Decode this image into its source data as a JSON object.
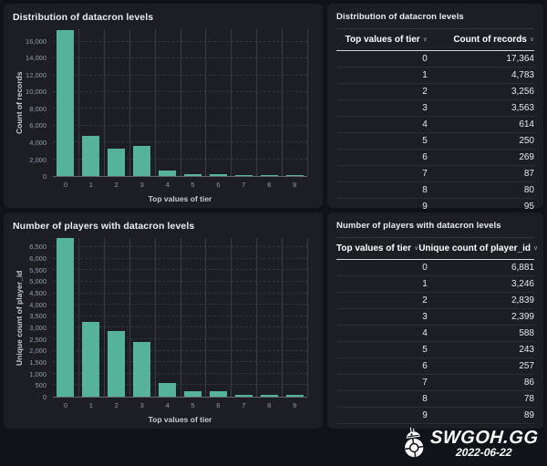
{
  "colors": {
    "page_background": "#121318",
    "panel_background": "#1d1e24",
    "bar_fill": "#54b399",
    "header_underline": "#ced3dc"
  },
  "panels": [
    {
      "type": "chart",
      "title": "Distribution of datacron levels"
    },
    {
      "type": "table",
      "title": "Distribution of datacron levels"
    },
    {
      "type": "chart",
      "title": "Number of players with datacron levels"
    },
    {
      "type": "table",
      "title": "Number of players with datacron levels"
    }
  ],
  "chart_data": [
    {
      "type": "bar",
      "title": "Distribution of datacron levels",
      "categories": [
        "0",
        "1",
        "2",
        "3",
        "4",
        "5",
        "6",
        "7",
        "8",
        "9"
      ],
      "values": [
        17364,
        4783,
        3256,
        3563,
        614,
        250,
        269,
        87,
        80,
        95
      ],
      "xlabel": "Top values of tier",
      "ylabel": "Count of records",
      "ylim": [
        0,
        17500
      ],
      "yticks": [
        0,
        2000,
        4000,
        6000,
        8000,
        10000,
        12000,
        14000,
        16000
      ],
      "bar_color": "#54b399",
      "grid": true,
      "legend": false
    },
    {
      "type": "bar",
      "title": "Number of players with datacron levels",
      "categories": [
        "0",
        "1",
        "2",
        "3",
        "4",
        "5",
        "6",
        "7",
        "8",
        "9"
      ],
      "values": [
        6881,
        3246,
        2839,
        2399,
        588,
        243,
        257,
        86,
        78,
        89
      ],
      "xlabel": "Top values of tier",
      "ylabel": "Unique count of player_id",
      "ylim": [
        0,
        6900
      ],
      "yticks": [
        0,
        500,
        1000,
        1500,
        2000,
        2500,
        3000,
        3500,
        4000,
        4500,
        5000,
        5500,
        6000,
        6500
      ],
      "bar_color": "#54b399",
      "grid": true,
      "legend": false
    }
  ],
  "tables": [
    {
      "title": "Distribution of datacron levels",
      "columns": [
        "Top values of tier",
        "Count of records"
      ],
      "sort_icon": "∨",
      "rows": [
        [
          "0",
          "17,364"
        ],
        [
          "1",
          "4,783"
        ],
        [
          "2",
          "3,256"
        ],
        [
          "3",
          "3,563"
        ],
        [
          "4",
          "614"
        ],
        [
          "5",
          "250"
        ],
        [
          "6",
          "269"
        ],
        [
          "7",
          "87"
        ],
        [
          "8",
          "80"
        ],
        [
          "9",
          "95"
        ]
      ]
    },
    {
      "title": "Number of players with datacron levels",
      "columns": [
        "Top values of tier",
        "Unique count of player_id"
      ],
      "sort_icon": "∨",
      "rows": [
        [
          "0",
          "6,881"
        ],
        [
          "1",
          "3,246"
        ],
        [
          "2",
          "2,839"
        ],
        [
          "3",
          "2,399"
        ],
        [
          "4",
          "588"
        ],
        [
          "5",
          "243"
        ],
        [
          "6",
          "257"
        ],
        [
          "7",
          "86"
        ],
        [
          "8",
          "78"
        ],
        [
          "9",
          "89"
        ]
      ]
    }
  ],
  "branding": {
    "logo_text": "SWGOH.GG",
    "date": "2022-06-22",
    "logo_icon": "bb8-droid"
  }
}
